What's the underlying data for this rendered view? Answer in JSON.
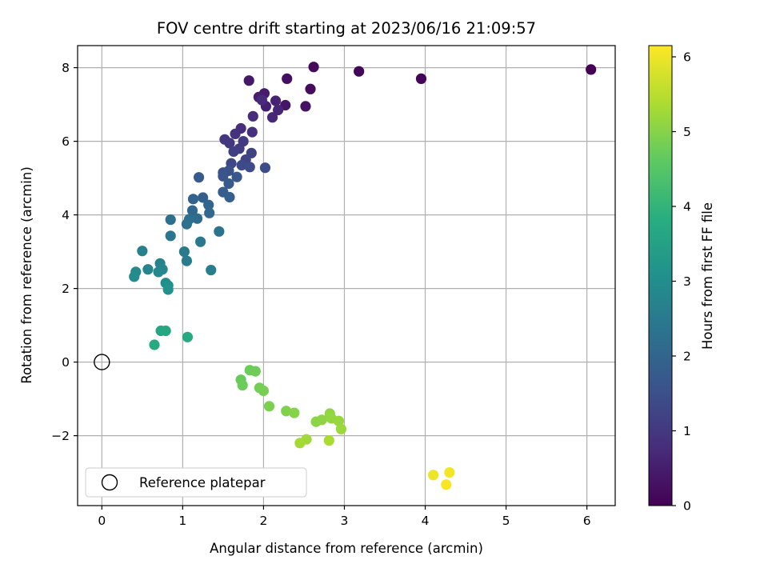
{
  "chart_data": {
    "type": "scatter",
    "title": "FOV centre drift starting at 2023/06/16 21:09:57",
    "xlabel": "Angular distance from reference (arcmin)",
    "ylabel": "Rotation from reference (arcmin)",
    "xlim": [
      -0.3,
      6.35
    ],
    "ylim": [
      -3.9,
      8.6
    ],
    "xticks": [
      0,
      1,
      2,
      3,
      4,
      5,
      6
    ],
    "yticks": [
      -2,
      0,
      2,
      4,
      6,
      8
    ],
    "grid": true,
    "colormap": "viridis",
    "colorbar": {
      "label": "Hours from first FF file",
      "range": [
        0,
        6.15
      ],
      "ticks": [
        0,
        1,
        2,
        3,
        4,
        5,
        6
      ]
    },
    "legend": {
      "position": "lower-left",
      "entries": [
        "Reference platepar"
      ]
    },
    "reference": {
      "x": 0,
      "y": 0
    },
    "points": [
      {
        "x": 6.05,
        "y": 7.95,
        "t": 0.0
      },
      {
        "x": 3.95,
        "y": 7.7,
        "t": 0.05
      },
      {
        "x": 3.18,
        "y": 7.9,
        "t": 0.1
      },
      {
        "x": 2.62,
        "y": 8.02,
        "t": 0.15
      },
      {
        "x": 2.58,
        "y": 7.42,
        "t": 0.2
      },
      {
        "x": 2.29,
        "y": 7.7,
        "t": 0.25
      },
      {
        "x": 2.52,
        "y": 6.95,
        "t": 0.3
      },
      {
        "x": 2.27,
        "y": 6.98,
        "t": 0.35
      },
      {
        "x": 1.82,
        "y": 7.65,
        "t": 0.4
      },
      {
        "x": 2.01,
        "y": 7.3,
        "t": 0.45
      },
      {
        "x": 1.94,
        "y": 7.2,
        "t": 0.5
      },
      {
        "x": 2.03,
        "y": 6.95,
        "t": 0.55
      },
      {
        "x": 2.15,
        "y": 7.1,
        "t": 0.6
      },
      {
        "x": 2.18,
        "y": 6.85,
        "t": 0.65
      },
      {
        "x": 2.11,
        "y": 6.65,
        "t": 0.7
      },
      {
        "x": 1.98,
        "y": 7.12,
        "t": 0.72
      },
      {
        "x": 1.87,
        "y": 6.68,
        "t": 0.75
      },
      {
        "x": 1.72,
        "y": 6.35,
        "t": 0.8
      },
      {
        "x": 1.86,
        "y": 6.25,
        "t": 0.85
      },
      {
        "x": 1.65,
        "y": 6.2,
        "t": 0.9
      },
      {
        "x": 1.52,
        "y": 6.05,
        "t": 0.95
      },
      {
        "x": 1.58,
        "y": 5.95,
        "t": 1.0
      },
      {
        "x": 1.75,
        "y": 6.0,
        "t": 1.05
      },
      {
        "x": 1.7,
        "y": 5.8,
        "t": 1.1
      },
      {
        "x": 1.63,
        "y": 5.72,
        "t": 1.15
      },
      {
        "x": 1.85,
        "y": 5.68,
        "t": 1.2
      },
      {
        "x": 1.78,
        "y": 5.5,
        "t": 1.25
      },
      {
        "x": 1.6,
        "y": 5.4,
        "t": 1.3
      },
      {
        "x": 1.73,
        "y": 5.35,
        "t": 1.35
      },
      {
        "x": 1.83,
        "y": 5.3,
        "t": 1.4
      },
      {
        "x": 2.02,
        "y": 5.28,
        "t": 1.45
      },
      {
        "x": 1.57,
        "y": 5.2,
        "t": 1.5
      },
      {
        "x": 1.5,
        "y": 5.15,
        "t": 1.55
      },
      {
        "x": 1.5,
        "y": 5.05,
        "t": 1.6
      },
      {
        "x": 1.67,
        "y": 5.03,
        "t": 1.65
      },
      {
        "x": 1.57,
        "y": 4.85,
        "t": 1.7
      },
      {
        "x": 1.2,
        "y": 5.02,
        "t": 1.75
      },
      {
        "x": 1.5,
        "y": 4.62,
        "t": 1.8
      },
      {
        "x": 1.58,
        "y": 4.48,
        "t": 1.85
      },
      {
        "x": 1.25,
        "y": 4.47,
        "t": 1.9
      },
      {
        "x": 1.13,
        "y": 4.43,
        "t": 1.95
      },
      {
        "x": 1.32,
        "y": 4.27,
        "t": 2.0
      },
      {
        "x": 1.12,
        "y": 4.12,
        "t": 2.05
      },
      {
        "x": 1.33,
        "y": 4.05,
        "t": 2.1
      },
      {
        "x": 1.18,
        "y": 3.9,
        "t": 2.15
      },
      {
        "x": 1.08,
        "y": 3.88,
        "t": 2.2
      },
      {
        "x": 0.85,
        "y": 3.87,
        "t": 2.25
      },
      {
        "x": 1.05,
        "y": 3.75,
        "t": 2.3
      },
      {
        "x": 1.45,
        "y": 3.55,
        "t": 2.35
      },
      {
        "x": 0.85,
        "y": 3.43,
        "t": 2.4
      },
      {
        "x": 1.22,
        "y": 3.27,
        "t": 2.45
      },
      {
        "x": 1.02,
        "y": 3.0,
        "t": 2.5
      },
      {
        "x": 1.05,
        "y": 2.75,
        "t": 2.55
      },
      {
        "x": 1.35,
        "y": 2.5,
        "t": 2.6
      },
      {
        "x": 0.5,
        "y": 3.02,
        "t": 2.65
      },
      {
        "x": 0.72,
        "y": 2.68,
        "t": 2.7
      },
      {
        "x": 0.57,
        "y": 2.52,
        "t": 2.75
      },
      {
        "x": 0.75,
        "y": 2.52,
        "t": 2.8
      },
      {
        "x": 0.7,
        "y": 2.45,
        "t": 2.85
      },
      {
        "x": 0.42,
        "y": 2.45,
        "t": 2.9
      },
      {
        "x": 0.4,
        "y": 2.32,
        "t": 2.95
      },
      {
        "x": 0.79,
        "y": 2.15,
        "t": 3.0
      },
      {
        "x": 0.82,
        "y": 2.08,
        "t": 3.05
      },
      {
        "x": 0.82,
        "y": 1.97,
        "t": 3.1
      },
      {
        "x": 0.73,
        "y": 0.85,
        "t": 3.6
      },
      {
        "x": 0.79,
        "y": 0.85,
        "t": 3.65
      },
      {
        "x": 1.06,
        "y": 0.68,
        "t": 3.7
      },
      {
        "x": 0.65,
        "y": 0.47,
        "t": 3.75
      },
      {
        "x": 1.72,
        "y": -0.48,
        "t": 4.7
      },
      {
        "x": 1.74,
        "y": -0.63,
        "t": 4.72
      },
      {
        "x": 1.83,
        "y": -0.22,
        "t": 4.75
      },
      {
        "x": 1.9,
        "y": -0.25,
        "t": 4.78
      },
      {
        "x": 1.95,
        "y": -0.7,
        "t": 4.82
      },
      {
        "x": 2.0,
        "y": -0.78,
        "t": 4.85
      },
      {
        "x": 2.07,
        "y": -1.2,
        "t": 4.9
      },
      {
        "x": 2.28,
        "y": -1.33,
        "t": 4.95
      },
      {
        "x": 2.38,
        "y": -1.38,
        "t": 5.0
      },
      {
        "x": 2.65,
        "y": -1.62,
        "t": 5.05
      },
      {
        "x": 2.72,
        "y": -1.57,
        "t": 5.08
      },
      {
        "x": 2.82,
        "y": -1.4,
        "t": 5.1
      },
      {
        "x": 2.84,
        "y": -1.53,
        "t": 5.13
      },
      {
        "x": 2.93,
        "y": -1.6,
        "t": 5.16
      },
      {
        "x": 2.96,
        "y": -1.82,
        "t": 5.2
      },
      {
        "x": 2.53,
        "y": -2.1,
        "t": 5.25
      },
      {
        "x": 2.45,
        "y": -2.2,
        "t": 5.3
      },
      {
        "x": 2.81,
        "y": -2.13,
        "t": 5.35
      },
      {
        "x": 4.1,
        "y": -3.07,
        "t": 6.0
      },
      {
        "x": 4.3,
        "y": -3.0,
        "t": 6.05
      },
      {
        "x": 4.26,
        "y": -3.33,
        "t": 6.1
      }
    ]
  }
}
